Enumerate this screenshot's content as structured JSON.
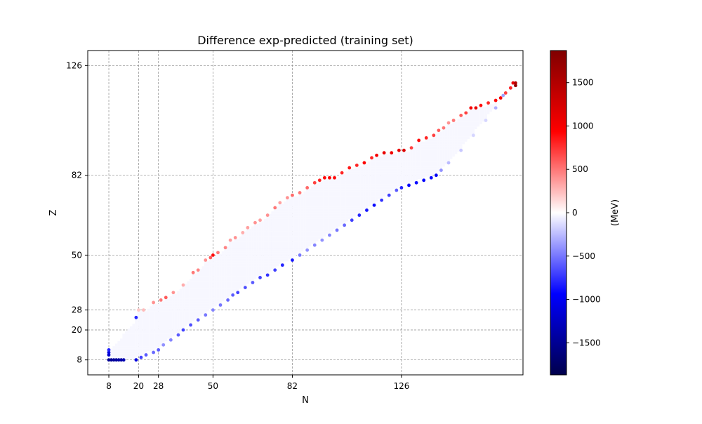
{
  "chart_data": {
    "type": "scatter",
    "title": "Difference exp-predicted (training set)",
    "xlabel": "N",
    "ylabel": "Z",
    "xticks": [
      8,
      20,
      28,
      50,
      82,
      126
    ],
    "yticks": [
      8,
      20,
      28,
      50,
      82,
      126
    ],
    "xlim": [
      -0.5,
      175
    ],
    "ylim": [
      2,
      132
    ],
    "grid": true,
    "colorbar": {
      "label": "(MeV)",
      "ticks": [
        1500,
        1000,
        500,
        0,
        -500,
        -1000,
        -1500
      ],
      "range": [
        -1870,
        1870
      ],
      "colormap": "seismic"
    },
    "colors": {
      "deep_blue": "#00004c",
      "blue": "#0000ff",
      "white": "#ffffff",
      "red": "#ff0000",
      "deep_red": "#800000",
      "grid": "#999999"
    },
    "band": {
      "description_values": "interior nuclei differences near 0 MeV",
      "interior_value": -30
    },
    "edge_points": {
      "neutron_rich_edge": [
        {
          "n": 8,
          "z": 8,
          "v": -1500
        },
        {
          "n": 9,
          "z": 8,
          "v": -1500
        },
        {
          "n": 10,
          "z": 8,
          "v": -1450
        },
        {
          "n": 11,
          "z": 8,
          "v": -1450
        },
        {
          "n": 12,
          "z": 8,
          "v": -1400
        },
        {
          "n": 13,
          "z": 8,
          "v": -1400
        },
        {
          "n": 14,
          "z": 8,
          "v": -1350
        },
        {
          "n": 19,
          "z": 8,
          "v": -1100
        },
        {
          "n": 21,
          "z": 9,
          "v": -700
        },
        {
          "n": 23,
          "z": 10,
          "v": -600
        },
        {
          "n": 26,
          "z": 11,
          "v": -550
        },
        {
          "n": 28,
          "z": 12,
          "v": -600
        },
        {
          "n": 30,
          "z": 14,
          "v": -400
        },
        {
          "n": 33,
          "z": 16,
          "v": -450
        },
        {
          "n": 36,
          "z": 18,
          "v": -600
        },
        {
          "n": 38,
          "z": 20,
          "v": -700
        },
        {
          "n": 41,
          "z": 22,
          "v": -650
        },
        {
          "n": 44,
          "z": 24,
          "v": -600
        },
        {
          "n": 47,
          "z": 26,
          "v": -500
        },
        {
          "n": 50,
          "z": 28,
          "v": -450
        },
        {
          "n": 53,
          "z": 30,
          "v": -500
        },
        {
          "n": 56,
          "z": 32,
          "v": -550
        },
        {
          "n": 58,
          "z": 34,
          "v": -600
        },
        {
          "n": 60,
          "z": 35,
          "v": -700
        },
        {
          "n": 63,
          "z": 37,
          "v": -650
        },
        {
          "n": 66,
          "z": 39,
          "v": -600
        },
        {
          "n": 69,
          "z": 41,
          "v": -700
        },
        {
          "n": 72,
          "z": 42,
          "v": -750
        },
        {
          "n": 75,
          "z": 44,
          "v": -700
        },
        {
          "n": 78,
          "z": 46,
          "v": -800
        },
        {
          "n": 82,
          "z": 48,
          "v": -850
        },
        {
          "n": 85,
          "z": 50,
          "v": -500
        },
        {
          "n": 88,
          "z": 52,
          "v": -400
        },
        {
          "n": 91,
          "z": 54,
          "v": -450
        },
        {
          "n": 94,
          "z": 56,
          "v": -400
        },
        {
          "n": 97,
          "z": 58,
          "v": -450
        },
        {
          "n": 100,
          "z": 60,
          "v": -500
        },
        {
          "n": 103,
          "z": 62,
          "v": -550
        },
        {
          "n": 106,
          "z": 64,
          "v": -700
        },
        {
          "n": 109,
          "z": 66,
          "v": -800
        },
        {
          "n": 112,
          "z": 68,
          "v": -850
        },
        {
          "n": 115,
          "z": 70,
          "v": -900
        },
        {
          "n": 118,
          "z": 72,
          "v": -750
        },
        {
          "n": 121,
          "z": 74,
          "v": -700
        },
        {
          "n": 124,
          "z": 76,
          "v": -600
        },
        {
          "n": 126,
          "z": 77,
          "v": -800
        },
        {
          "n": 129,
          "z": 78,
          "v": -950
        },
        {
          "n": 132,
          "z": 79,
          "v": -900
        },
        {
          "n": 135,
          "z": 80,
          "v": -950
        },
        {
          "n": 138,
          "z": 81,
          "v": -900
        },
        {
          "n": 140,
          "z": 82,
          "v": -1000
        },
        {
          "n": 142,
          "z": 84,
          "v": -400
        },
        {
          "n": 145,
          "z": 87,
          "v": -250
        },
        {
          "n": 150,
          "z": 92,
          "v": -200
        },
        {
          "n": 155,
          "z": 98,
          "v": -150
        },
        {
          "n": 160,
          "z": 104,
          "v": -150
        },
        {
          "n": 164,
          "z": 109,
          "v": -300
        },
        {
          "n": 167,
          "z": 114,
          "v": -350
        },
        {
          "n": 170,
          "z": 117,
          "v": -250
        }
      ],
      "proton_rich_edge": [
        {
          "n": 8,
          "z": 10,
          "v": -1200
        },
        {
          "n": 8,
          "z": 11,
          "v": -1100
        },
        {
          "n": 8,
          "z": 12,
          "v": -800
        },
        {
          "n": 19,
          "z": 25,
          "v": -800
        },
        {
          "n": 20,
          "z": 28,
          "v": 200
        },
        {
          "n": 22,
          "z": 28,
          "v": 250
        },
        {
          "n": 26,
          "z": 31,
          "v": 400
        },
        {
          "n": 29,
          "z": 32,
          "v": 500
        },
        {
          "n": 31,
          "z": 33,
          "v": 600
        },
        {
          "n": 34,
          "z": 35,
          "v": 400
        },
        {
          "n": 38,
          "z": 38,
          "v": 300
        },
        {
          "n": 42,
          "z": 43,
          "v": 500
        },
        {
          "n": 44,
          "z": 44,
          "v": 450
        },
        {
          "n": 47,
          "z": 48,
          "v": 400
        },
        {
          "n": 49,
          "z": 49,
          "v": 600
        },
        {
          "n": 50,
          "z": 50,
          "v": 900
        },
        {
          "n": 52,
          "z": 51,
          "v": 500
        },
        {
          "n": 55,
          "z": 53,
          "v": 450
        },
        {
          "n": 57,
          "z": 56,
          "v": 350
        },
        {
          "n": 59,
          "z": 57,
          "v": 400
        },
        {
          "n": 62,
          "z": 59,
          "v": 300
        },
        {
          "n": 64,
          "z": 61,
          "v": 350
        },
        {
          "n": 67,
          "z": 63,
          "v": 400
        },
        {
          "n": 69,
          "z": 64,
          "v": 350
        },
        {
          "n": 72,
          "z": 66,
          "v": 400
        },
        {
          "n": 75,
          "z": 69,
          "v": 500
        },
        {
          "n": 77,
          "z": 71,
          "v": 350
        },
        {
          "n": 80,
          "z": 73,
          "v": 400
        },
        {
          "n": 82,
          "z": 74,
          "v": 550
        },
        {
          "n": 85,
          "z": 75,
          "v": 500
        },
        {
          "n": 88,
          "z": 77,
          "v": 550
        },
        {
          "n": 91,
          "z": 79,
          "v": 700
        },
        {
          "n": 93,
          "z": 80,
          "v": 800
        },
        {
          "n": 95,
          "z": 81,
          "v": 900
        },
        {
          "n": 97,
          "z": 81,
          "v": 950
        },
        {
          "n": 99,
          "z": 81,
          "v": 900
        },
        {
          "n": 102,
          "z": 83,
          "v": 800
        },
        {
          "n": 105,
          "z": 85,
          "v": 850
        },
        {
          "n": 108,
          "z": 86,
          "v": 800
        },
        {
          "n": 111,
          "z": 87,
          "v": 950
        },
        {
          "n": 114,
          "z": 89,
          "v": 800
        },
        {
          "n": 116,
          "z": 90,
          "v": 1000
        },
        {
          "n": 119,
          "z": 91,
          "v": 1100
        },
        {
          "n": 122,
          "z": 91,
          "v": 1050
        },
        {
          "n": 125,
          "z": 92,
          "v": 1100
        },
        {
          "n": 127,
          "z": 92,
          "v": 1200
        },
        {
          "n": 130,
          "z": 93,
          "v": 700
        },
        {
          "n": 133,
          "z": 96,
          "v": 900
        },
        {
          "n": 136,
          "z": 97,
          "v": 800
        },
        {
          "n": 139,
          "z": 98,
          "v": 700
        },
        {
          "n": 141,
          "z": 100,
          "v": 600
        },
        {
          "n": 143,
          "z": 101,
          "v": 500
        },
        {
          "n": 145,
          "z": 103,
          "v": 400
        },
        {
          "n": 147,
          "z": 104,
          "v": 500
        },
        {
          "n": 150,
          "z": 106,
          "v": 600
        },
        {
          "n": 152,
          "z": 107,
          "v": 700
        },
        {
          "n": 154,
          "z": 109,
          "v": 1000
        },
        {
          "n": 156,
          "z": 109,
          "v": 1100
        },
        {
          "n": 158,
          "z": 110,
          "v": 900
        },
        {
          "n": 161,
          "z": 111,
          "v": 800
        },
        {
          "n": 164,
          "z": 112,
          "v": 900
        },
        {
          "n": 166,
          "z": 113,
          "v": 1000
        },
        {
          "n": 168,
          "z": 115,
          "v": 700
        },
        {
          "n": 170,
          "z": 117,
          "v": 800
        },
        {
          "n": 171,
          "z": 119,
          "v": 1100
        },
        {
          "n": 172,
          "z": 119,
          "v": 1500
        },
        {
          "n": 172,
          "z": 118,
          "v": 1700
        }
      ]
    }
  }
}
